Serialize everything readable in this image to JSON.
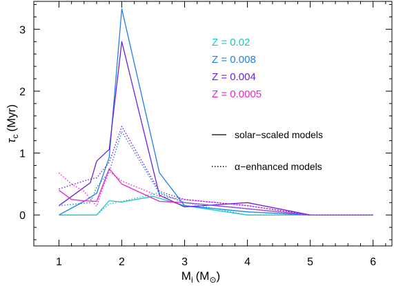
{
  "chart_data": {
    "type": "line",
    "xlabel": "M",
    "xlabel_sub": "i",
    "xlabel_units_open": "(M",
    "xlabel_units_close": ")",
    "ylabel": "τ",
    "ylabel_sub": "c",
    "ylabel_units": "(Myr)",
    "xlim": [
      0.6,
      6.3
    ],
    "ylim": [
      -0.5,
      3.45
    ],
    "x_ticks": [
      1,
      2,
      3,
      4,
      5,
      6
    ],
    "y_ticks": [
      0,
      1,
      2,
      3
    ],
    "x_tick_labels": [
      "1",
      "2",
      "3",
      "4",
      "5",
      "6"
    ],
    "y_tick_labels": [
      "0",
      "1",
      "2",
      "3"
    ],
    "grid": false,
    "legend_position": "top-right",
    "styles": [
      {
        "label": "solar−scaled models",
        "dash": "solid"
      },
      {
        "label": "α−enhanced models",
        "dash": "dotted"
      }
    ],
    "series": [
      {
        "name": "Z = 0.02",
        "color": "#1fc4c4",
        "dash": "solid",
        "x": [
          1.0,
          1.6,
          1.8,
          2.0,
          2.5,
          3.0,
          4.0,
          5.0,
          6.0
        ],
        "y": [
          0.0,
          0.0,
          0.23,
          0.21,
          0.3,
          0.15,
          0.0,
          0.0,
          0.0
        ]
      },
      {
        "name": "Z = 0.008",
        "color": "#1f7fe8",
        "dash": "solid",
        "x": [
          1.0,
          1.4,
          1.6,
          1.8,
          2.0,
          2.6,
          3.0,
          4.0,
          5.0,
          6.0
        ],
        "y": [
          0.0,
          0.22,
          0.35,
          0.93,
          3.33,
          0.68,
          0.15,
          0.05,
          0.0,
          0.0
        ]
      },
      {
        "name": "Z = 0.004",
        "color": "#6a1fe0",
        "dash": "solid",
        "x": [
          1.0,
          1.5,
          1.6,
          1.8,
          2.0,
          2.6,
          3.0,
          4.0,
          5.0,
          6.0
        ],
        "y": [
          0.15,
          0.52,
          0.87,
          1.06,
          2.8,
          0.32,
          0.13,
          0.2,
          0.0,
          0.0
        ]
      },
      {
        "name": "Z = 0.0005",
        "color": "#ee22cc",
        "dash": "solid",
        "x": [
          1.0,
          1.2,
          1.4,
          1.6,
          1.8,
          2.0,
          2.6,
          3.0,
          4.0,
          5.0,
          6.0
        ],
        "y": [
          0.4,
          0.25,
          0.23,
          0.22,
          0.75,
          0.5,
          0.22,
          0.2,
          0.1,
          0.0,
          0.0
        ]
      },
      {
        "name": "Z = 0.02",
        "color": "#1fc4c4",
        "dash": "dotted",
        "x": [
          1.0,
          1.6,
          1.8,
          2.0,
          2.6,
          3.0,
          4.0,
          5.0,
          6.0
        ],
        "y": [
          0.0,
          0.0,
          0.18,
          0.22,
          0.36,
          0.2,
          0.0,
          0.0,
          0.0
        ]
      },
      {
        "name": "Z = 0.008",
        "color": "#1f7fe8",
        "dash": "dotted",
        "x": [
          1.0,
          1.5,
          1.6,
          1.8,
          2.0,
          2.6,
          3.0,
          4.0,
          5.0,
          6.0
        ],
        "y": [
          0.15,
          0.2,
          0.45,
          0.7,
          1.35,
          0.35,
          0.2,
          0.1,
          0.0,
          0.0
        ]
      },
      {
        "name": "Z = 0.004",
        "color": "#6a1fe0",
        "dash": "dotted",
        "x": [
          1.0,
          1.5,
          1.6,
          1.8,
          2.0,
          2.6,
          3.0,
          4.0,
          5.0,
          6.0
        ],
        "y": [
          0.42,
          0.58,
          0.6,
          0.85,
          1.43,
          0.38,
          0.25,
          0.15,
          0.0,
          0.0
        ]
      },
      {
        "name": "Z = 0.0005",
        "color": "#ee22cc",
        "dash": "dotted",
        "x": [
          1.0,
          1.2,
          1.4,
          1.6,
          1.7,
          1.8,
          2.0,
          2.6,
          3.0,
          4.0,
          5.0,
          6.0
        ],
        "y": [
          0.68,
          0.5,
          0.38,
          0.14,
          0.45,
          0.7,
          0.55,
          0.3,
          0.25,
          0.15,
          0.0,
          0.0
        ]
      }
    ],
    "legend": [
      {
        "label": "Z = 0.02",
        "color": "#1fc4c4"
      },
      {
        "label": "Z = 0.008",
        "color": "#1f7fe8"
      },
      {
        "label": "Z = 0.004",
        "color": "#6a1fe0"
      },
      {
        "label": "Z = 0.0005",
        "color": "#ee22cc"
      }
    ]
  }
}
